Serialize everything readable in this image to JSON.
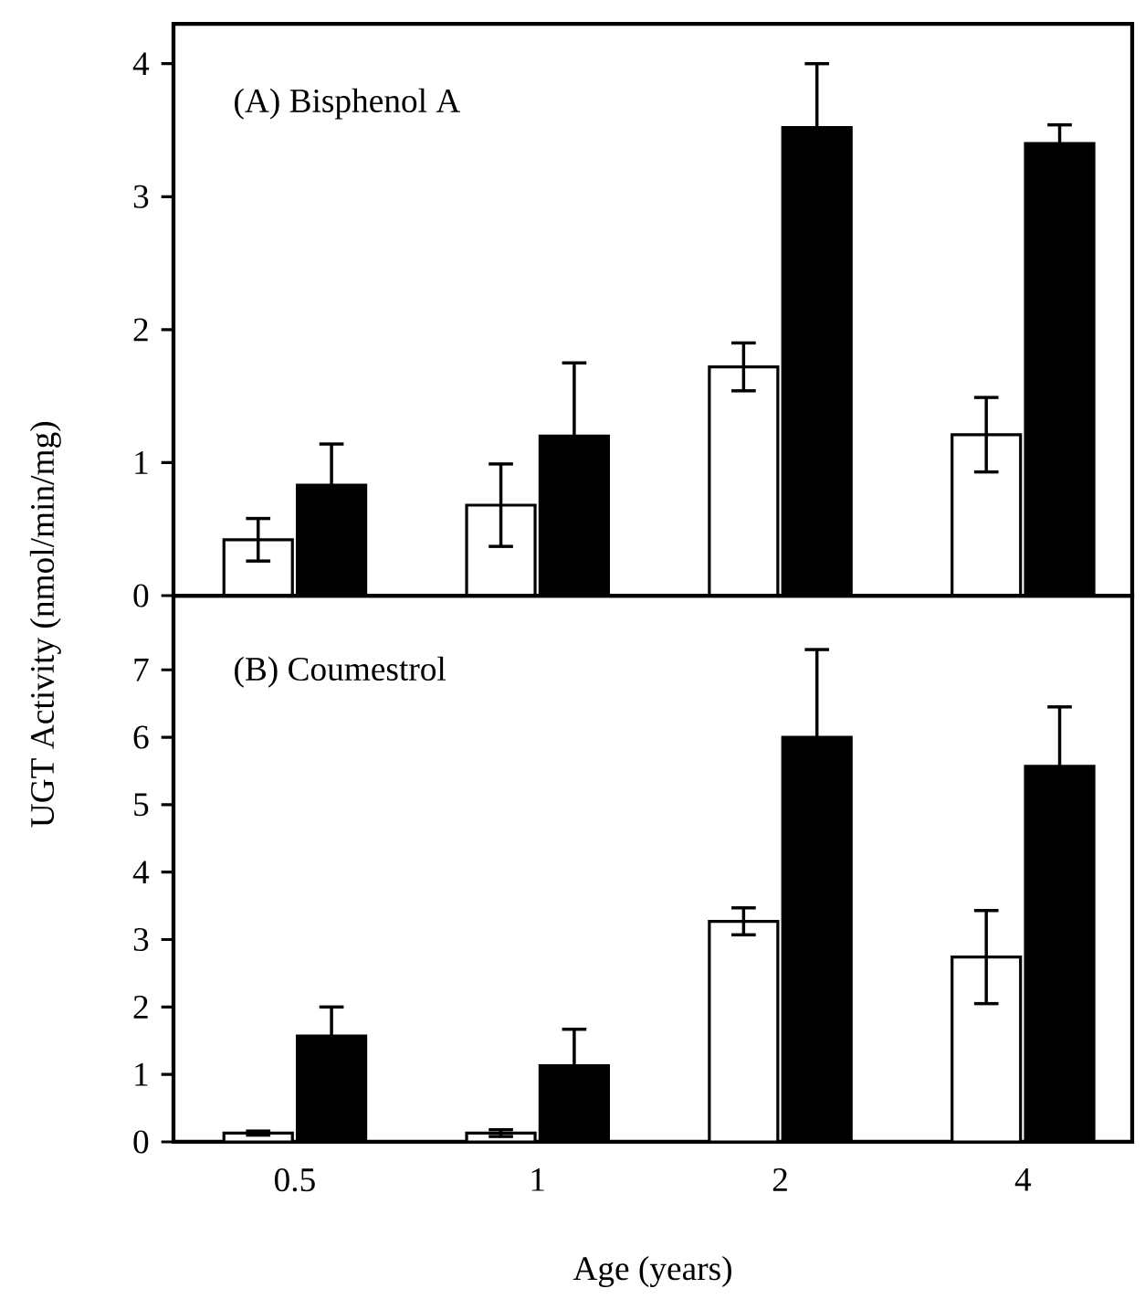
{
  "chart_data": [
    {
      "type": "bar",
      "title": "(A) Bisphenol A",
      "ylabel": "UGT Activity (nmol/min/mg)",
      "categories": [
        "0.5",
        "1",
        "2",
        "4"
      ],
      "ylim": [
        0,
        4.3
      ],
      "yticks": [
        0,
        1,
        2,
        3,
        4
      ],
      "tick_labels": "y",
      "series": [
        {
          "color": "#ffffff",
          "values": [
            0.42,
            0.68,
            1.72,
            1.21
          ],
          "errors": [
            0.16,
            0.31,
            0.18,
            0.28
          ]
        },
        {
          "color": "#000000",
          "values": [
            0.83,
            1.2,
            3.52,
            3.4
          ],
          "errors": [
            0.31,
            0.55,
            0.48,
            0.14
          ]
        }
      ]
    },
    {
      "type": "bar",
      "title": "(B) Coumestrol",
      "xlabel": "Age (years)",
      "categories": [
        "0.5",
        "1",
        "2",
        "4"
      ],
      "ylim": [
        0,
        8.1
      ],
      "yticks": [
        0,
        1,
        2,
        3,
        4,
        5,
        6,
        7
      ],
      "series": [
        {
          "color": "#ffffff",
          "values": [
            0.13,
            0.13,
            3.27,
            2.74
          ],
          "errors": [
            0.03,
            0.05,
            0.2,
            0.69
          ]
        },
        {
          "color": "#000000",
          "values": [
            1.57,
            1.13,
            6.0,
            5.57
          ],
          "errors": [
            0.43,
            0.54,
            1.3,
            0.88
          ]
        }
      ]
    }
  ]
}
